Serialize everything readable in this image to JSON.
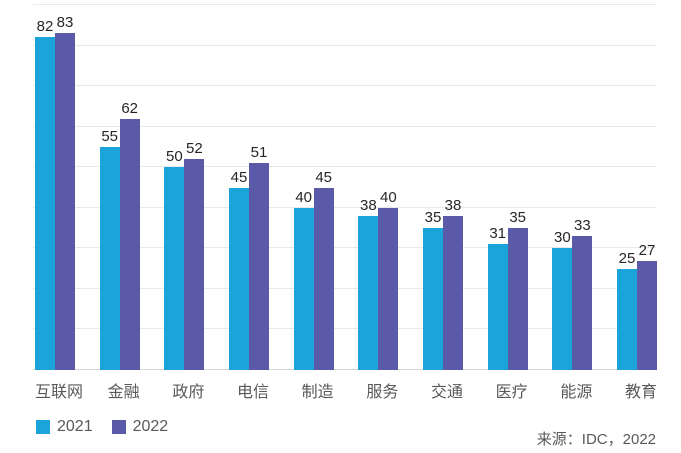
{
  "chart_data": {
    "type": "bar",
    "title": "",
    "categories": [
      "互联网",
      "金融",
      "政府",
      "电信",
      "制造",
      "服务",
      "交通",
      "医疗",
      "能源",
      "教育"
    ],
    "series": [
      {
        "name": "2021",
        "color": "#1ba4da",
        "values": [
          82,
          55,
          50,
          45,
          40,
          38,
          35,
          31,
          30,
          25
        ]
      },
      {
        "name": "2022",
        "color": "#5b5aa8",
        "values": [
          83,
          62,
          52,
          51,
          45,
          40,
          38,
          35,
          33,
          27
        ]
      }
    ],
    "ylim": [
      0,
      90
    ],
    "gridline_step": 10,
    "grid": "horizontal",
    "legend_position": "bottom-left",
    "value_labels": "above-bars"
  },
  "source_note": "来源：IDC，2022",
  "colors": {
    "series_2021": "#1ba4da",
    "series_2022": "#5b5aa8",
    "gridline": "#e9e9e9",
    "axis_line": "#d7d7d7",
    "value_label": "#262626",
    "axis_label": "#595959",
    "background": "#ffffff"
  }
}
